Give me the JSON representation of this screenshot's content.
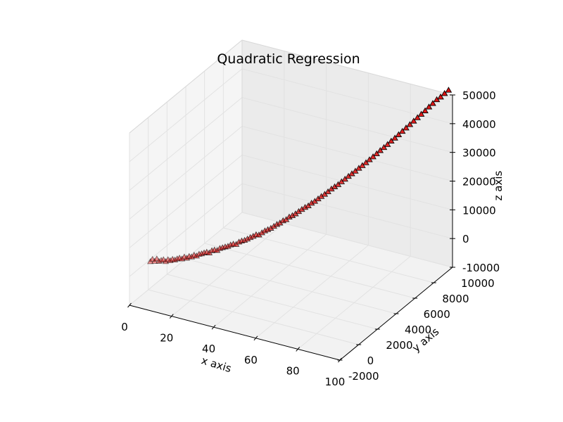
{
  "chart_data": {
    "type": "scatter",
    "projection": "3d",
    "title": "Quadratic Regression",
    "xlabel": "x axis",
    "ylabel": "y axis",
    "zlabel": "z axis",
    "xlim": [
      0,
      100
    ],
    "ylim": [
      -2000,
      10000
    ],
    "zlim": [
      -10000,
      50000
    ],
    "xticks": [
      0,
      20,
      40,
      60,
      80,
      100
    ],
    "yticks": [
      -2000,
      0,
      2000,
      4000,
      6000,
      8000,
      10000
    ],
    "zticks": [
      -10000,
      0,
      10000,
      20000,
      30000,
      40000,
      50000
    ],
    "grid": true,
    "marker": "triangle",
    "marker_color": "#e01010",
    "series": [
      {
        "x": [
          1,
          2,
          3,
          4,
          5,
          6,
          7,
          8,
          9,
          10,
          11,
          12,
          13,
          14,
          15,
          16,
          17,
          18,
          19,
          20,
          21,
          22,
          23,
          24,
          25,
          26,
          27,
          28,
          29,
          30,
          31,
          32,
          33,
          34,
          35,
          36,
          37,
          38,
          39,
          40,
          41,
          42,
          43,
          44,
          45,
          46,
          47,
          48,
          49,
          50,
          51,
          52,
          53,
          54,
          55,
          56,
          57,
          58,
          59,
          60,
          61,
          62,
          63,
          64,
          65,
          66,
          67,
          68,
          69,
          70,
          71,
          72,
          73,
          74,
          75,
          76,
          77,
          78,
          79,
          80,
          81,
          82,
          83,
          84,
          85,
          86,
          87,
          88,
          89,
          90,
          91,
          92,
          93,
          94,
          95,
          96,
          97,
          98,
          99
        ],
        "y": [
          1,
          4,
          9,
          16,
          25,
          36,
          49,
          64,
          81,
          100,
          121,
          144,
          169,
          196,
          225,
          256,
          289,
          324,
          361,
          400,
          441,
          484,
          529,
          576,
          625,
          676,
          729,
          784,
          841,
          900,
          961,
          1024,
          1089,
          1156,
          1225,
          1296,
          1369,
          1444,
          1521,
          1600,
          1681,
          1764,
          1849,
          1936,
          2025,
          2116,
          2209,
          2304,
          2401,
          2500,
          2601,
          2704,
          2809,
          2916,
          3025,
          3136,
          3249,
          3364,
          3481,
          3600,
          3721,
          3844,
          3969,
          4096,
          4225,
          4356,
          4489,
          4624,
          4761,
          4900,
          5041,
          5184,
          5329,
          5476,
          5625,
          5776,
          5929,
          6084,
          6241,
          6400,
          6561,
          6724,
          6889,
          7056,
          7225,
          7396,
          7569,
          7744,
          7921,
          8100,
          8281,
          8464,
          8649,
          8836,
          9025,
          9216,
          9409,
          9604,
          9801
        ],
        "z": [
          0,
          1000,
          500,
          1500,
          800,
          1300,
          1700,
          1200,
          2000,
          1800,
          2400,
          2300,
          2800,
          3200,
          3000,
          3800,
          3500,
          4200,
          4100,
          4800,
          4600,
          5300,
          5500,
          5900,
          6200,
          6000,
          6800,
          7100,
          7000,
          7700,
          8000,
          8300,
          8500,
          9000,
          9300,
          9200,
          10000,
          10400,
          10600,
          11000,
          11500,
          11900,
          12400,
          12300,
          13000,
          13600,
          14000,
          14400,
          15000,
          15600,
          16000,
          16700,
          17000,
          17800,
          18200,
          18700,
          19400,
          20000,
          20600,
          21000,
          21800,
          22300,
          23000,
          23700,
          24300,
          25000,
          25800,
          26400,
          27000,
          27800,
          28500,
          29300,
          30000,
          30700,
          31500,
          32200,
          33000,
          33800,
          34600,
          35400,
          36300,
          37100,
          37900,
          38800,
          39600,
          40500,
          41400,
          42300,
          43200,
          44100,
          45000,
          45900,
          46800,
          47800,
          48700,
          49700,
          50300,
          51200,
          52000
        ]
      }
    ]
  }
}
